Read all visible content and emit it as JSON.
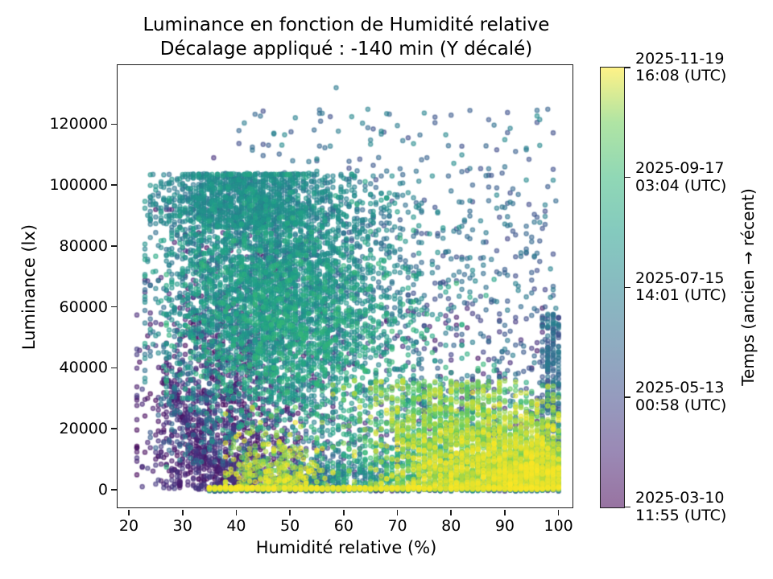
{
  "title": {
    "line1": "Luminance en fonction de Humidité relative",
    "line2": "Décalage appliqué : -140 min (Y décalé)"
  },
  "axes": {
    "xlabel": "Humidité relative (%)",
    "ylabel": "Luminance (lx)",
    "x_ticks": [
      {
        "v": 20,
        "label": "20"
      },
      {
        "v": 30,
        "label": "30"
      },
      {
        "v": 40,
        "label": "40"
      },
      {
        "v": 50,
        "label": "50"
      },
      {
        "v": 60,
        "label": "60"
      },
      {
        "v": 70,
        "label": "70"
      },
      {
        "v": 80,
        "label": "80"
      },
      {
        "v": 90,
        "label": "90"
      },
      {
        "v": 100,
        "label": "100"
      }
    ],
    "y_ticks": [
      {
        "v": 0,
        "label": "0"
      },
      {
        "v": 20000,
        "label": "20000"
      },
      {
        "v": 40000,
        "label": "40000"
      },
      {
        "v": 60000,
        "label": "60000"
      },
      {
        "v": 80000,
        "label": "80000"
      },
      {
        "v": 100000,
        "label": "100000"
      },
      {
        "v": 120000,
        "label": "120000"
      }
    ],
    "spine_color": "#1a1a1a",
    "text_color": "#000000"
  },
  "colorbar": {
    "label": "Temps (ancien → récent)",
    "alpha": 0.55,
    "ticks": [
      {
        "pos": 1.0,
        "line1": "2025-11-19",
        "line2": "16:08 (UTC)"
      },
      {
        "pos": 0.75,
        "line1": "2025-09-17",
        "line2": "03:04 (UTC)"
      },
      {
        "pos": 0.5,
        "line1": "2025-07-15",
        "line2": "14:01 (UTC)"
      },
      {
        "pos": 0.25,
        "line1": "2025-05-13",
        "line2": "00:58 (UTC)"
      },
      {
        "pos": 0.0,
        "line1": "2025-03-10",
        "line2": "11:55 (UTC)"
      }
    ]
  },
  "chart_data": {
    "type": "scatter",
    "title": "Luminance en fonction de Humidité relative — Décalage appliqué : -140 min (Y décalé)",
    "xlabel": "Humidité relative (%)",
    "ylabel": "Luminance (lx)",
    "xlim": [
      18.05,
      102.75
    ],
    "ylim": [
      -6130,
      139150
    ],
    "grid": false,
    "colormap": "viridis",
    "color_scale": "time, 2025-03-10 11:55 UTC (t=0, purple) to 2025-11-19 16:08 UTC (t=1, yellow)",
    "alpha": 0.55,
    "marker_radius_px": 2.6,
    "marker_edge_px": 1.5,
    "seed": 7,
    "viridis_anchors": [
      [
        0.0,
        "#440154"
      ],
      [
        0.125,
        "#482878"
      ],
      [
        0.25,
        "#3e4989"
      ],
      [
        0.375,
        "#31688e"
      ],
      [
        0.5,
        "#26828e"
      ],
      [
        0.625,
        "#1f9e89"
      ],
      [
        0.75,
        "#35b779"
      ],
      [
        0.875,
        "#6ece58"
      ],
      [
        1.0,
        "#fde725"
      ]
    ],
    "clusters": [
      {
        "name": "summer-ceiling-band",
        "n": 950,
        "x": {
          "dist": "normal",
          "mu": 41,
          "sigma": 7.5,
          "clip": [
            24,
            62
          ],
          "q": 0.5
        },
        "y": {
          "dist": "uniform",
          "lo": 86000,
          "hi": 104000
        },
        "t": [
          0.4,
          0.6
        ]
      },
      {
        "name": "mid-season-cloud",
        "n": 2300,
        "x": {
          "dist": "normal",
          "mu": 44,
          "sigma": 9,
          "clip": [
            23,
            76
          ],
          "q": 0.5
        },
        "y": {
          "dist": "normal",
          "mu": 72000,
          "sigma": 17000,
          "clip": [
            30000,
            103500
          ]
        },
        "t": [
          0.38,
          0.68
        ]
      },
      {
        "name": "green-mid-cloud",
        "n": 1500,
        "x": {
          "dist": "normal",
          "mu": 52,
          "sigma": 11,
          "clip": [
            27,
            88
          ],
          "q": 0.5
        },
        "y": {
          "dist": "normal",
          "mu": 50000,
          "sigma": 17000,
          "clip": [
            4000,
            96000
          ]
        },
        "t": [
          0.5,
          0.76
        ]
      },
      {
        "name": "early-purple-left",
        "n": 1300,
        "x": {
          "dist": "normal",
          "mu": 38,
          "sigma": 7.5,
          "clip": [
            21.5,
            58
          ],
          "q": 0.5
        },
        "y": {
          "dist": "halfnormal",
          "sigma": 36000,
          "base": 0,
          "clip": [
            0,
            92000
          ]
        },
        "t": [
          0.0,
          0.2
        ]
      },
      {
        "name": "teal-upper-mid-right",
        "n": 400,
        "x": {
          "dist": "normal",
          "mu": 62,
          "sigma": 8,
          "clip": [
            50,
            85
          ],
          "q": 0.5
        },
        "y": {
          "dist": "normal",
          "mu": 78000,
          "sigma": 15000,
          "clip": [
            45000,
            103000
          ]
        },
        "t": [
          0.35,
          0.6
        ]
      },
      {
        "name": "recent-yellow-mass-bottom-right",
        "n": 2400,
        "x": {
          "dist": "reflectmax",
          "max": 100,
          "sigma": 14,
          "clip": [
            48,
            100
          ],
          "q": 1
        },
        "y": {
          "dist": "halfnormal",
          "sigma": 11000,
          "base": 0,
          "clip": [
            0,
            34000
          ]
        },
        "t": [
          0.85,
          1.0
        ]
      },
      {
        "name": "recent-yellow-triangle",
        "n": 450,
        "x": {
          "dist": "normal",
          "mu": 79,
          "sigma": 8,
          "clip": [
            58,
            98
          ],
          "q": 1
        },
        "y": {
          "dist": "uniform",
          "lo": 14000,
          "hi": 36000
        },
        "t": [
          0.8,
          0.97
        ]
      },
      {
        "name": "bottom-zero-band-yellow",
        "n": 1000,
        "x": {
          "dist": "uniform",
          "lo": 35,
          "hi": 100,
          "q": 1
        },
        "y": {
          "dist": "uniform",
          "lo": 100,
          "hi": 800
        },
        "t": [
          0.84,
          1.0
        ]
      },
      {
        "name": "bottom-zero-band-early",
        "n": 300,
        "x": {
          "dist": "uniform",
          "lo": 35,
          "hi": 100,
          "q": 1
        },
        "y": {
          "dist": "uniform",
          "lo": -500,
          "hi": 200
        },
        "t": [
          0.05,
          0.6
        ]
      },
      {
        "name": "sparse-blue-teal-field",
        "n": 700,
        "x": {
          "dist": "uniform",
          "lo": 40,
          "hi": 100,
          "q": 0.5
        },
        "y": {
          "dist": "uniform",
          "lo": 15000,
          "hi": 95000
        },
        "t": [
          0.22,
          0.5
        ]
      },
      {
        "name": "sparse-high-top",
        "n": 130,
        "x": {
          "dist": "uniform",
          "lo": 40,
          "hi": 100,
          "q": 0.5
        },
        "y": {
          "dist": "uniform",
          "lo": 95000,
          "hi": 125000
        },
        "t": [
          0.25,
          0.55
        ]
      },
      {
        "name": "green-right-low",
        "n": 650,
        "x": {
          "dist": "normal",
          "mu": 78,
          "sigma": 10,
          "clip": [
            55,
            100
          ],
          "q": 1
        },
        "y": {
          "dist": "halfnormal",
          "sigma": 16000,
          "base": 2000,
          "clip": [
            0,
            52000
          ]
        },
        "t": [
          0.6,
          0.8
        ]
      },
      {
        "name": "early-purple-right-sprinkle",
        "n": 230,
        "x": {
          "dist": "uniform",
          "lo": 55,
          "hi": 100,
          "q": 1
        },
        "y": {
          "dist": "uniform",
          "lo": 3000,
          "hi": 60000
        },
        "t": [
          0.05,
          0.25
        ]
      },
      {
        "name": "right-edge-columns",
        "n": 280,
        "x": {
          "dist": "uniform",
          "lo": 97,
          "hi": 100.4,
          "q": 1,
          "clip": [
            97,
            100
          ]
        },
        "y": {
          "dist": "uniform",
          "lo": 500,
          "hi": 58000
        },
        "t": [
          0.25,
          0.5
        ]
      },
      {
        "name": "yellow-mid-left-spots",
        "n": 320,
        "x": {
          "dist": "normal",
          "mu": 47,
          "sigma": 4.5,
          "clip": [
            38,
            58
          ],
          "q": 0.5
        },
        "y": {
          "dist": "halfnormal",
          "sigma": 9000,
          "base": 0,
          "clip": [
            0,
            27000
          ]
        },
        "t": [
          0.85,
          1.0
        ]
      },
      {
        "name": "teal-bottom-mid",
        "n": 350,
        "x": {
          "dist": "normal",
          "mu": 58,
          "sigma": 9,
          "clip": [
            42,
            80
          ],
          "q": 0.5
        },
        "y": {
          "dist": "halfnormal",
          "sigma": 7000,
          "base": 0,
          "clip": [
            0,
            20000
          ]
        },
        "t": [
          0.3,
          0.55
        ]
      },
      {
        "name": "teal-left-sparse",
        "n": 220,
        "x": {
          "dist": "normal",
          "mu": 33,
          "sigma": 5,
          "clip": [
            24,
            45
          ],
          "q": 0.5
        },
        "y": {
          "dist": "uniform",
          "lo": 8000,
          "hi": 60000
        },
        "t": [
          0.28,
          0.5
        ]
      },
      {
        "name": "early-left-descending-trail",
        "n": 130,
        "curve": {
          "x0": 26,
          "dx": 17,
          "x_jitter": 0.6,
          "y_amp": 40000,
          "y_pow": 2.0,
          "y_jitter": 1500
        },
        "t": [
          0.02,
          0.14
        ]
      },
      {
        "name": "early-left-column",
        "n": 9,
        "x": {
          "dist": "uniform",
          "lo": 29.3,
          "hi": 29.6
        },
        "y": {
          "dist": "uniform",
          "lo": 200,
          "hi": 5600
        },
        "t": [
          0.04,
          0.1
        ]
      }
    ],
    "outliers": [
      [
        58.6,
        132000,
        0.45
      ],
      [
        55.7,
        121000,
        0.33
      ],
      [
        50.2,
        117500,
        0.3
      ],
      [
        61.5,
        122500,
        0.52
      ],
      [
        77.0,
        120500,
        0.3
      ],
      [
        87.0,
        121500,
        0.3
      ],
      [
        74.2,
        116500,
        0.38
      ],
      [
        94.5,
        108500,
        0.28
      ],
      [
        35.8,
        109000,
        0.15
      ],
      [
        43.0,
        111500,
        0.42
      ]
    ]
  }
}
